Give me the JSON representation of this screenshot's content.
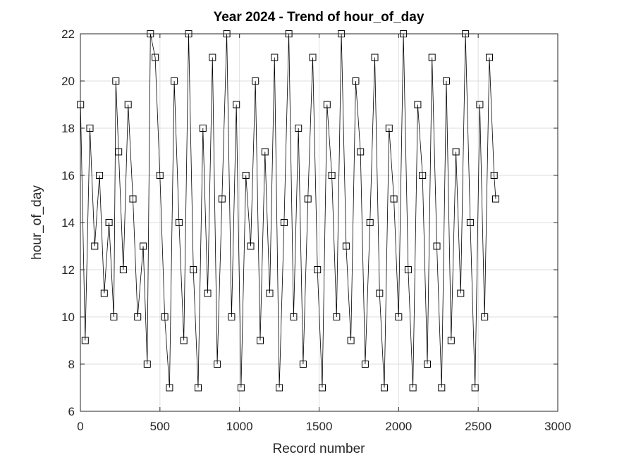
{
  "chart_data": {
    "type": "line",
    "title": "Year 2024 - Trend of hour_of_day",
    "xlabel": "Record number",
    "ylabel": "hour_of_day",
    "xlim": [
      0,
      3000
    ],
    "ylim": [
      6,
      22
    ],
    "xticks": [
      0,
      500,
      1000,
      1500,
      2000,
      2500,
      3000
    ],
    "yticks": [
      6,
      8,
      10,
      12,
      14,
      16,
      18,
      20,
      22
    ],
    "grid": true,
    "marker": "square",
    "line_color": "#000000",
    "series": [
      {
        "x": [
          1,
          30,
          60,
          90,
          120,
          150,
          180,
          210,
          223,
          240,
          270,
          300,
          330,
          360,
          395,
          420,
          440,
          470,
          500,
          530,
          560,
          590,
          620,
          650,
          680,
          710,
          740,
          770,
          800,
          830,
          860,
          890,
          920,
          950,
          980,
          1010,
          1040,
          1070,
          1100,
          1130,
          1160,
          1190,
          1220,
          1250,
          1280,
          1310,
          1340,
          1370,
          1400,
          1430,
          1460,
          1490,
          1520,
          1550,
          1580,
          1610,
          1640,
          1670,
          1700,
          1730,
          1760,
          1790,
          1820,
          1850,
          1880,
          1910,
          1940,
          1970,
          2000,
          2030,
          2060,
          2090,
          2120,
          2150,
          2180,
          2210,
          2240,
          2270,
          2300,
          2330,
          2360,
          2390,
          2420,
          2450,
          2480,
          2510,
          2540,
          2570,
          2600,
          2610
        ],
        "y": [
          19,
          9,
          18,
          13,
          16,
          11,
          14,
          10,
          20,
          17,
          12,
          19,
          15,
          10,
          13,
          8,
          22,
          21,
          16,
          10,
          7,
          20,
          14,
          9,
          22,
          12,
          7,
          18,
          11,
          21,
          8,
          15,
          22,
          10,
          19,
          7,
          16,
          13,
          20,
          9,
          17,
          11,
          21,
          7,
          14,
          22,
          10,
          18,
          8,
          15,
          21,
          12,
          7,
          19,
          16,
          10,
          22,
          13,
          9,
          20,
          17,
          8,
          14,
          21,
          11,
          7,
          18,
          15,
          10,
          22,
          12,
          7,
          19,
          16,
          8,
          21,
          13,
          7,
          20,
          9,
          17,
          11,
          22,
          14,
          7,
          19,
          10,
          21,
          16,
          15
        ]
      }
    ]
  }
}
